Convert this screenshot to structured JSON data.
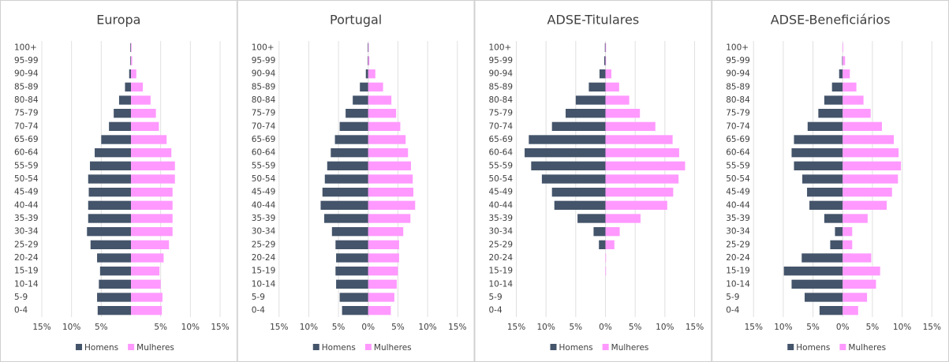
{
  "chart_data": [
    {
      "type": "pyramid",
      "title": "Europa",
      "categories": [
        "100+",
        "95-99",
        "90-94",
        "85-89",
        "80-84",
        "75-79",
        "70-74",
        "65-69",
        "60-64",
        "55-59",
        "50-54",
        "45-49",
        "40-44",
        "35-39",
        "30-34",
        "25-29",
        "20-24",
        "15-19",
        "10-14",
        "5-9",
        "0-4"
      ],
      "series": [
        {
          "name": "Homens",
          "color": "#44546a",
          "values": [
            -0.1,
            -0.1,
            -0.3,
            -1.0,
            -2.0,
            -2.9,
            -3.7,
            -5.0,
            -6.1,
            -6.9,
            -7.2,
            -7.1,
            -7.2,
            -7.2,
            -7.4,
            -6.8,
            -5.7,
            -5.2,
            -5.4,
            -5.7,
            -5.6
          ]
        },
        {
          "name": "Mulheres",
          "color": "#ff99ff",
          "values": [
            0.1,
            0.2,
            0.9,
            2.0,
            3.3,
            4.2,
            4.7,
            6.0,
            6.8,
            7.4,
            7.4,
            7.0,
            7.0,
            7.0,
            7.0,
            6.4,
            5.5,
            4.8,
            5.0,
            5.3,
            5.2
          ]
        }
      ],
      "xlim": [
        -15,
        15
      ],
      "xticks": [
        {
          "value": -15,
          "label": "15%"
        },
        {
          "value": -10,
          "label": "10%"
        },
        {
          "value": -5,
          "label": "5%"
        },
        {
          "value": 5,
          "label": "5%"
        },
        {
          "value": 10,
          "label": "10%"
        },
        {
          "value": 15,
          "label": "15%"
        }
      ],
      "grid": true
    },
    {
      "type": "pyramid",
      "title": "Portugal",
      "categories": [
        "100+",
        "95-99",
        "90-94",
        "85-89",
        "80-84",
        "75-79",
        "70-74",
        "65-69",
        "60-64",
        "55-59",
        "50-54",
        "45-49",
        "40-44",
        "35-39",
        "30-34",
        "25-29",
        "20-24",
        "15-19",
        "10-14",
        "5-9",
        "0-4"
      ],
      "series": [
        {
          "name": "Homens",
          "color": "#44546a",
          "values": [
            -0.1,
            -0.1,
            -0.4,
            -1.4,
            -2.6,
            -3.8,
            -4.8,
            -5.6,
            -6.3,
            -6.9,
            -7.3,
            -7.7,
            -8.0,
            -7.4,
            -6.1,
            -5.5,
            -5.4,
            -5.5,
            -5.4,
            -4.8,
            -4.4
          ]
        },
        {
          "name": "Mulheres",
          "color": "#ff99ff",
          "values": [
            0.1,
            0.2,
            1.2,
            2.5,
            3.9,
            4.7,
            5.4,
            6.3,
            6.7,
            7.2,
            7.5,
            7.6,
            7.9,
            7.1,
            5.9,
            5.2,
            5.2,
            5.0,
            4.8,
            4.4,
            3.8
          ]
        }
      ],
      "xlim": [
        -15,
        15
      ],
      "xticks": [
        {
          "value": -15,
          "label": "15%"
        },
        {
          "value": -10,
          "label": "10%"
        },
        {
          "value": -5,
          "label": "5%"
        },
        {
          "value": 0,
          "label": "0%"
        },
        {
          "value": 5,
          "label": "5%"
        },
        {
          "value": 10,
          "label": "10%"
        },
        {
          "value": 15,
          "label": "15%"
        }
      ],
      "grid": true
    },
    {
      "type": "pyramid",
      "title": "ADSE-Titulares",
      "categories": [
        "100+",
        "95-99",
        "90-94",
        "85-89",
        "80-84",
        "75-79",
        "70-74",
        "65-69",
        "60-64",
        "55-59",
        "50-54",
        "45-49",
        "40-44",
        "35-39",
        "30-34",
        "25-29",
        "20-24",
        "15-19",
        "10-14",
        "5-9",
        "0-4"
      ],
      "series": [
        {
          "name": "Homens",
          "color": "#44546a",
          "values": [
            -0.1,
            -0.2,
            -1.0,
            -2.8,
            -5.0,
            -6.7,
            -9.0,
            -12.9,
            -13.6,
            -12.5,
            -10.7,
            -9.0,
            -8.6,
            -4.7,
            -2.0,
            -1.1,
            0,
            0,
            0,
            0,
            0
          ]
        },
        {
          "name": "Mulheres",
          "color": "#ff99ff",
          "values": [
            0.1,
            0.1,
            1.0,
            2.3,
            4.0,
            5.8,
            8.4,
            11.3,
            12.4,
            13.4,
            12.3,
            11.4,
            10.4,
            5.9,
            2.4,
            1.5,
            0.1,
            0.1,
            0,
            0,
            0
          ]
        }
      ],
      "xlim": [
        -15,
        15
      ],
      "xticks": [
        {
          "value": -15,
          "label": "15%"
        },
        {
          "value": -10,
          "label": "10%"
        },
        {
          "value": -5,
          "label": "5%"
        },
        {
          "value": 0,
          "label": "0%"
        },
        {
          "value": 5,
          "label": "5%"
        },
        {
          "value": 10,
          "label": "10%"
        },
        {
          "value": 15,
          "label": "15%"
        }
      ],
      "grid": true
    },
    {
      "type": "pyramid",
      "title": "ADSE-Beneficiários",
      "categories": [
        "100+",
        "95-99",
        "90-94",
        "85-89",
        "80-84",
        "75-79",
        "70-74",
        "65-69",
        "60-64",
        "55-59",
        "50-54",
        "45-49",
        "40-44",
        "35-39",
        "30-34",
        "25-29",
        "20-24",
        "15-19",
        "10-14",
        "5-9",
        "0-4"
      ],
      "series": [
        {
          "name": "Homens",
          "color": "#44546a",
          "values": [
            0,
            -0.1,
            -0.6,
            -1.8,
            -3.1,
            -4.1,
            -5.9,
            -8.2,
            -8.6,
            -8.2,
            -6.8,
            -6.0,
            -5.6,
            -3.1,
            -1.3,
            -2.1,
            -6.9,
            -9.9,
            -8.6,
            -6.4,
            -3.9
          ]
        },
        {
          "name": "Mulheres",
          "color": "#ff99ff",
          "values": [
            0.1,
            0.4,
            1.2,
            2.3,
            3.5,
            4.7,
            6.6,
            8.6,
            9.4,
            9.8,
            9.3,
            8.3,
            7.4,
            4.2,
            1.6,
            1.6,
            4.8,
            6.3,
            5.6,
            4.1,
            2.6
          ]
        }
      ],
      "xlim": [
        -15,
        15
      ],
      "xticks": [
        {
          "value": -15,
          "label": "15%"
        },
        {
          "value": -10,
          "label": "10%"
        },
        {
          "value": -5,
          "label": "5%"
        },
        {
          "value": 0,
          "label": "0%"
        },
        {
          "value": 5,
          "label": "5%"
        },
        {
          "value": 10,
          "label": "10%"
        },
        {
          "value": 15,
          "label": "15%"
        }
      ],
      "grid": true
    }
  ]
}
